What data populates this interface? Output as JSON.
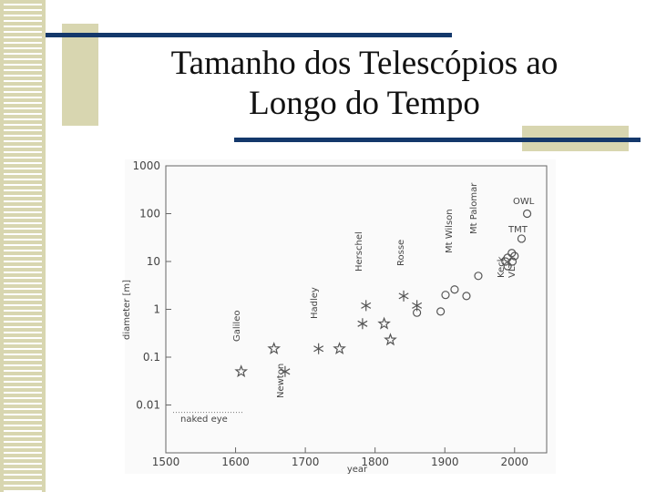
{
  "chart_data": {
    "type": "scatter",
    "title": "Tamanho dos Telescópios ao Longo do Tempo",
    "x_label": "year",
    "y_label": "diameter [m]",
    "log_y": true,
    "grid": false,
    "color": "#555555",
    "xlim": [
      1500,
      2046
    ],
    "xticks": [
      1500,
      1600,
      1700,
      1800,
      1900,
      2000
    ],
    "ylim": [
      0.001,
      1000
    ],
    "yticks": [
      0.01,
      0.1,
      1,
      10,
      100,
      1000
    ],
    "naked_eye_level": 0.007,
    "annotations": [
      "Galileo",
      "Newton",
      "Hadley",
      "Herschel",
      "Rosse",
      "Mt Wilson",
      "Mt Palomar",
      "Keck",
      "VLT",
      "TMT",
      "OWL",
      "naked eye"
    ],
    "series": [
      {
        "marker": "star",
        "x": [
          1608,
          1655,
          1749,
          1813,
          1822
        ],
        "values": [
          0.05,
          0.15,
          0.15,
          0.5,
          0.23
        ]
      },
      {
        "marker": "asterisk",
        "x": [
          1671,
          1719,
          1782,
          1787,
          1841,
          1860
        ],
        "values": [
          0.05,
          0.15,
          0.5,
          1.2,
          1.9,
          1.2
        ]
      },
      {
        "marker": "circle",
        "x": [
          1860,
          1894,
          1901,
          1914,
          1931,
          1948,
          1987,
          1990,
          1990,
          1996,
          1997,
          2000,
          2010,
          2018
        ],
        "values": [
          0.85,
          0.9,
          2,
          2.6,
          1.9,
          5,
          10,
          12,
          8,
          15,
          10,
          13,
          30,
          100
        ]
      }
    ]
  }
}
